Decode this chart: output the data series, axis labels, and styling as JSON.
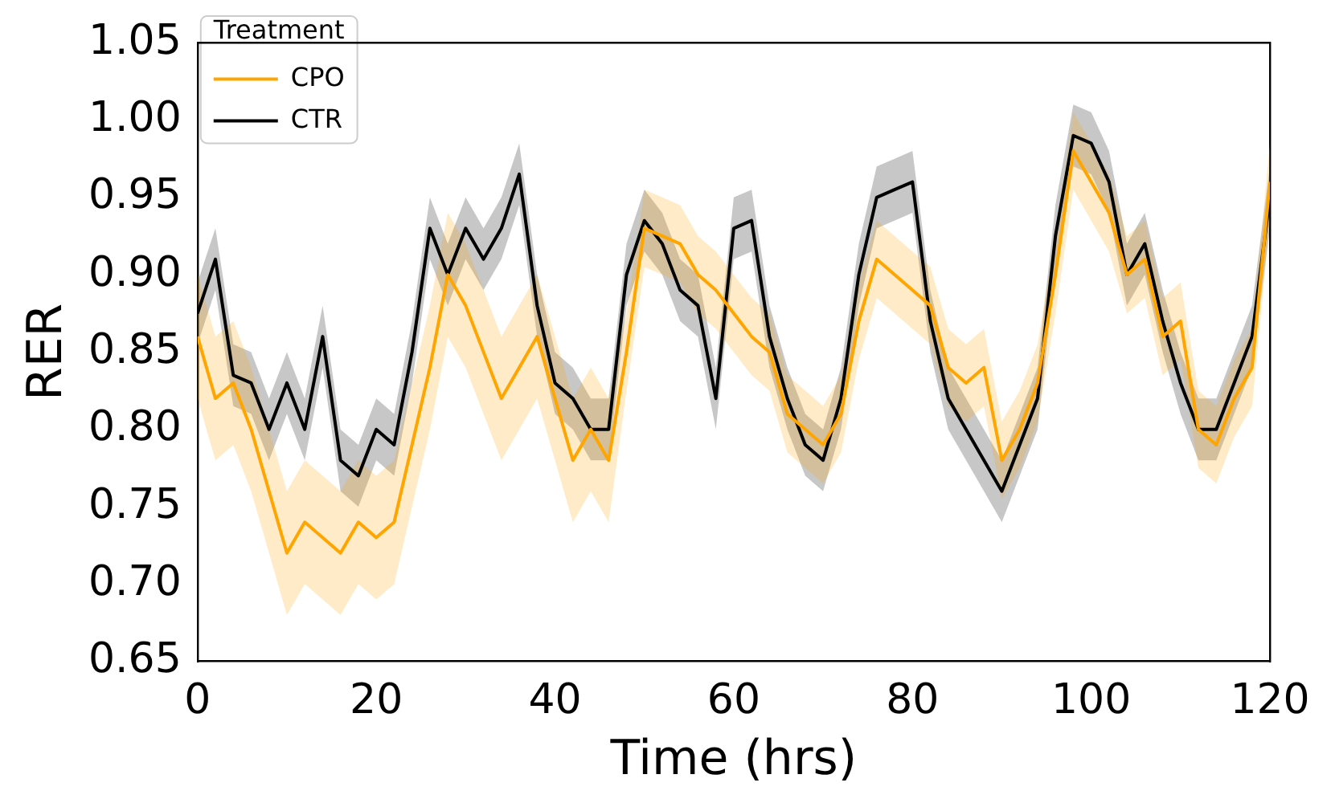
{
  "chart_data": {
    "type": "line",
    "xlabel": "Time (hrs)",
    "ylabel": "RER",
    "legend_title": "Treatment",
    "x": [
      0,
      2,
      4,
      6,
      8,
      10,
      12,
      14,
      16,
      18,
      20,
      22,
      24,
      26,
      28,
      30,
      32,
      34,
      36,
      38,
      40,
      42,
      44,
      46,
      48,
      50,
      52,
      54,
      56,
      58,
      60,
      62,
      64,
      66,
      68,
      70,
      72,
      74,
      76,
      78,
      80,
      82,
      84,
      86,
      88,
      90,
      92,
      94,
      96,
      98,
      100,
      102,
      104,
      106,
      108,
      110,
      112,
      114,
      116,
      118,
      120
    ],
    "series": [
      {
        "name": "CPO",
        "color": "#ffa500",
        "values": [
          0.86,
          0.82,
          0.83,
          0.8,
          0.76,
          0.72,
          0.74,
          0.73,
          0.72,
          0.74,
          0.73,
          0.74,
          0.79,
          0.84,
          0.9,
          0.88,
          0.85,
          0.82,
          0.84,
          0.86,
          0.82,
          0.78,
          0.8,
          0.78,
          0.85,
          0.93,
          0.925,
          0.92,
          0.9,
          0.89,
          0.875,
          0.86,
          0.85,
          0.81,
          0.8,
          0.79,
          0.81,
          0.87,
          0.91,
          0.9,
          0.89,
          0.88,
          0.84,
          0.83,
          0.84,
          0.78,
          0.8,
          0.83,
          0.9,
          0.98,
          0.96,
          0.94,
          0.9,
          0.91,
          0.86,
          0.87,
          0.8,
          0.79,
          0.82,
          0.84,
          0.96
        ],
        "lower": [
          0.82,
          0.78,
          0.79,
          0.76,
          0.72,
          0.68,
          0.7,
          0.69,
          0.68,
          0.7,
          0.69,
          0.7,
          0.75,
          0.8,
          0.86,
          0.84,
          0.81,
          0.78,
          0.8,
          0.82,
          0.78,
          0.74,
          0.76,
          0.74,
          0.825,
          0.905,
          0.9,
          0.895,
          0.875,
          0.865,
          0.85,
          0.835,
          0.825,
          0.785,
          0.775,
          0.765,
          0.785,
          0.845,
          0.885,
          0.875,
          0.865,
          0.855,
          0.815,
          0.805,
          0.815,
          0.755,
          0.775,
          0.805,
          0.875,
          0.955,
          0.935,
          0.915,
          0.875,
          0.885,
          0.835,
          0.845,
          0.775,
          0.765,
          0.795,
          0.815,
          0.935
        ],
        "upper": [
          0.9,
          0.86,
          0.87,
          0.84,
          0.8,
          0.76,
          0.78,
          0.77,
          0.76,
          0.78,
          0.77,
          0.78,
          0.83,
          0.88,
          0.94,
          0.92,
          0.89,
          0.86,
          0.88,
          0.9,
          0.86,
          0.82,
          0.84,
          0.82,
          0.875,
          0.955,
          0.95,
          0.945,
          0.925,
          0.915,
          0.9,
          0.885,
          0.875,
          0.835,
          0.825,
          0.815,
          0.835,
          0.895,
          0.935,
          0.925,
          0.915,
          0.905,
          0.865,
          0.855,
          0.865,
          0.805,
          0.825,
          0.855,
          0.925,
          1.005,
          0.985,
          0.965,
          0.925,
          0.935,
          0.885,
          0.895,
          0.825,
          0.815,
          0.845,
          0.865,
          0.985
        ]
      },
      {
        "name": "CTR",
        "color": "#000000",
        "values": [
          0.875,
          0.91,
          0.835,
          0.83,
          0.8,
          0.83,
          0.8,
          0.86,
          0.78,
          0.77,
          0.8,
          0.79,
          0.85,
          0.93,
          0.9,
          0.93,
          0.91,
          0.93,
          0.965,
          0.88,
          0.83,
          0.82,
          0.8,
          0.8,
          0.9,
          0.935,
          0.92,
          0.89,
          0.88,
          0.82,
          0.93,
          0.935,
          0.86,
          0.82,
          0.79,
          0.78,
          0.82,
          0.9,
          0.95,
          0.955,
          0.96,
          0.87,
          0.82,
          0.8,
          0.78,
          0.76,
          0.79,
          0.82,
          0.925,
          0.99,
          0.985,
          0.96,
          0.9,
          0.92,
          0.87,
          0.83,
          0.8,
          0.8,
          0.83,
          0.86,
          0.95
        ],
        "lower": [
          0.855,
          0.89,
          0.815,
          0.81,
          0.78,
          0.81,
          0.78,
          0.84,
          0.76,
          0.75,
          0.78,
          0.77,
          0.83,
          0.91,
          0.88,
          0.91,
          0.89,
          0.91,
          0.945,
          0.86,
          0.81,
          0.8,
          0.78,
          0.78,
          0.88,
          0.915,
          0.9,
          0.87,
          0.86,
          0.8,
          0.91,
          0.915,
          0.84,
          0.8,
          0.77,
          0.76,
          0.8,
          0.88,
          0.93,
          0.935,
          0.94,
          0.85,
          0.8,
          0.78,
          0.76,
          0.74,
          0.77,
          0.8,
          0.905,
          0.97,
          0.965,
          0.94,
          0.88,
          0.9,
          0.85,
          0.81,
          0.78,
          0.78,
          0.81,
          0.84,
          0.93
        ],
        "upper": [
          0.895,
          0.93,
          0.855,
          0.85,
          0.82,
          0.85,
          0.82,
          0.88,
          0.8,
          0.79,
          0.82,
          0.81,
          0.87,
          0.95,
          0.92,
          0.95,
          0.93,
          0.95,
          0.985,
          0.9,
          0.85,
          0.84,
          0.82,
          0.82,
          0.92,
          0.955,
          0.94,
          0.91,
          0.9,
          0.84,
          0.95,
          0.955,
          0.88,
          0.84,
          0.81,
          0.8,
          0.84,
          0.92,
          0.97,
          0.975,
          0.98,
          0.89,
          0.84,
          0.82,
          0.8,
          0.78,
          0.81,
          0.84,
          0.945,
          1.01,
          1.005,
          0.98,
          0.92,
          0.94,
          0.89,
          0.85,
          0.82,
          0.82,
          0.85,
          0.88,
          0.97
        ]
      }
    ],
    "xlim": [
      0,
      120
    ],
    "xticks": [
      0,
      20,
      40,
      60,
      80,
      100,
      120
    ],
    "ylim": [
      0.65,
      1.05
    ],
    "yticks": [
      0.65,
      {
        "value": 0.7,
        "label": "0.70"
      },
      0.75,
      {
        "value": 0.8,
        "label": "0.80"
      },
      0.85,
      {
        "value": 0.9,
        "label": "0.90"
      },
      0.95,
      {
        "value": 1,
        "label": "1.00"
      },
      1.05
    ],
    "grid": false,
    "legend": "top left",
    "marker": "none",
    "line_style": "solid"
  }
}
